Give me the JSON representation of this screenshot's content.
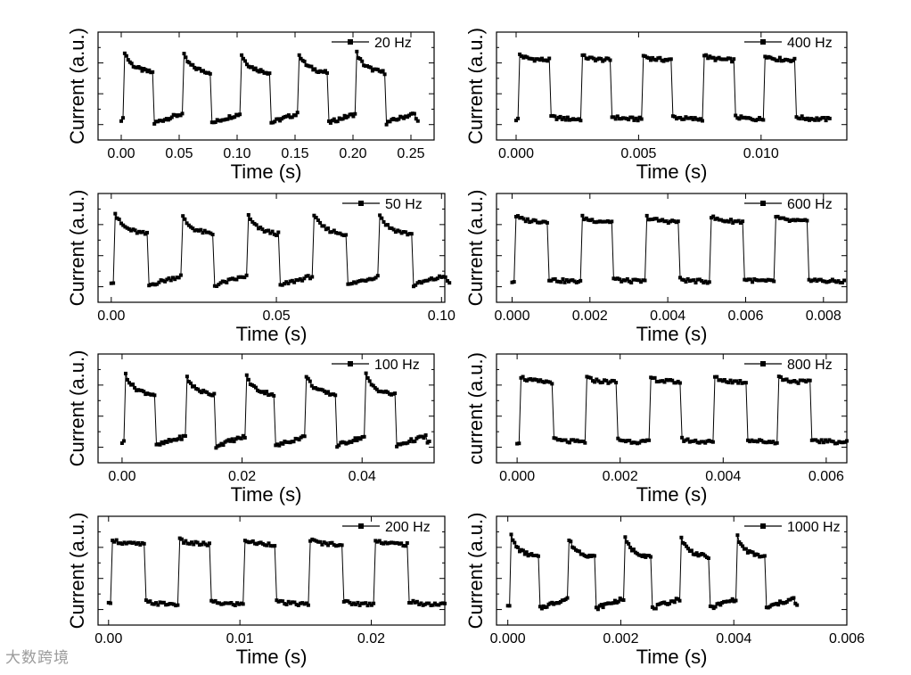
{
  "watermark": "大数跨境",
  "style": {
    "line_color": "#000000",
    "background": "#ffffff"
  },
  "chart_data": [
    {
      "type": "line",
      "legend": "20 Hz",
      "xlabel": "Time (s)",
      "ylabel": "Current (a.u.)",
      "xlim": [
        -0.02,
        0.27
      ],
      "xticks": [
        0.0,
        0.05,
        0.1,
        0.15,
        0.2,
        0.25
      ],
      "xtick_labels": [
        "0.00",
        "0.05",
        "0.10",
        "0.15",
        "0.20",
        "0.25"
      ],
      "frequency_hz": 20,
      "cycles": 5,
      "waveform_shape": "overshoot-decay",
      "y_axis_numbers_shown": false
    },
    {
      "type": "line",
      "legend": "400 Hz",
      "xlabel": "Time (s)",
      "ylabel": "Current (a.u.)",
      "xlim": [
        -0.0008,
        0.0135
      ],
      "xticks": [
        0.0,
        0.005,
        0.01
      ],
      "xtick_labels": [
        "0.000",
        "0.005",
        "0.010"
      ],
      "frequency_hz": 400,
      "cycles": 5,
      "waveform_shape": "square",
      "y_axis_numbers_shown": false
    },
    {
      "type": "line",
      "legend": "50 Hz",
      "xlabel": "Time (s)",
      "ylabel": "Current (a.u.)",
      "xlim": [
        -0.004,
        0.101
      ],
      "xticks": [
        0.0,
        0.05,
        0.1
      ],
      "xtick_labels": [
        "0.00",
        "0.05",
        "0.10"
      ],
      "frequency_hz": 50,
      "cycles": 5,
      "waveform_shape": "overshoot-decay",
      "y_axis_numbers_shown": false
    },
    {
      "type": "line",
      "legend": "600 Hz",
      "xlabel": "Time (s)",
      "ylabel": "Current (a.u.)",
      "xlim": [
        -0.0004,
        0.0086
      ],
      "xticks": [
        0.0,
        0.002,
        0.004,
        0.006,
        0.008
      ],
      "xtick_labels": [
        "0.000",
        "0.002",
        "0.004",
        "0.006",
        "0.008"
      ],
      "frequency_hz": 600,
      "cycles": 5,
      "waveform_shape": "square",
      "y_axis_numbers_shown": false
    },
    {
      "type": "line",
      "legend": "100 Hz",
      "xlabel": "Time (s)",
      "ylabel": "Current (a.u.)",
      "xlim": [
        -0.004,
        0.052
      ],
      "xticks": [
        0.0,
        0.02,
        0.04
      ],
      "xtick_labels": [
        "0.00",
        "0.02",
        "0.04"
      ],
      "frequency_hz": 100,
      "cycles": 5,
      "waveform_shape": "overshoot-decay",
      "y_axis_numbers_shown": false
    },
    {
      "type": "line",
      "legend": "800 Hz",
      "xlabel": "Time (s)",
      "ylabel": "current (a.u.)",
      "xlim": [
        -0.0004,
        0.0064
      ],
      "xticks": [
        0.0,
        0.002,
        0.004,
        0.006
      ],
      "xtick_labels": [
        "0.000",
        "0.002",
        "0.004",
        "0.006"
      ],
      "frequency_hz": 800,
      "cycles": 5,
      "waveform_shape": "square",
      "y_axis_numbers_shown": false
    },
    {
      "type": "line",
      "legend": "200 Hz",
      "xlabel": "Time (s)",
      "ylabel": "Current (a.u.)",
      "xlim": [
        -0.0008,
        0.0256
      ],
      "xticks": [
        0.0,
        0.01,
        0.02
      ],
      "xtick_labels": [
        "0.00",
        "0.01",
        "0.02"
      ],
      "frequency_hz": 200,
      "cycles": 5,
      "waveform_shape": "square",
      "y_axis_numbers_shown": false
    },
    {
      "type": "line",
      "legend": "1000 Hz",
      "xlabel": "Time (s)",
      "ylabel": "Current (a.u.)",
      "xlim": [
        -0.0002,
        0.006
      ],
      "xticks": [
        0.0,
        0.002,
        0.004,
        0.006
      ],
      "xtick_labels": [
        "0.000",
        "0.002",
        "0.004",
        "0.006"
      ],
      "frequency_hz": 1000,
      "cycles": 5,
      "waveform_shape": "overshoot-decay",
      "y_axis_numbers_shown": false
    }
  ]
}
